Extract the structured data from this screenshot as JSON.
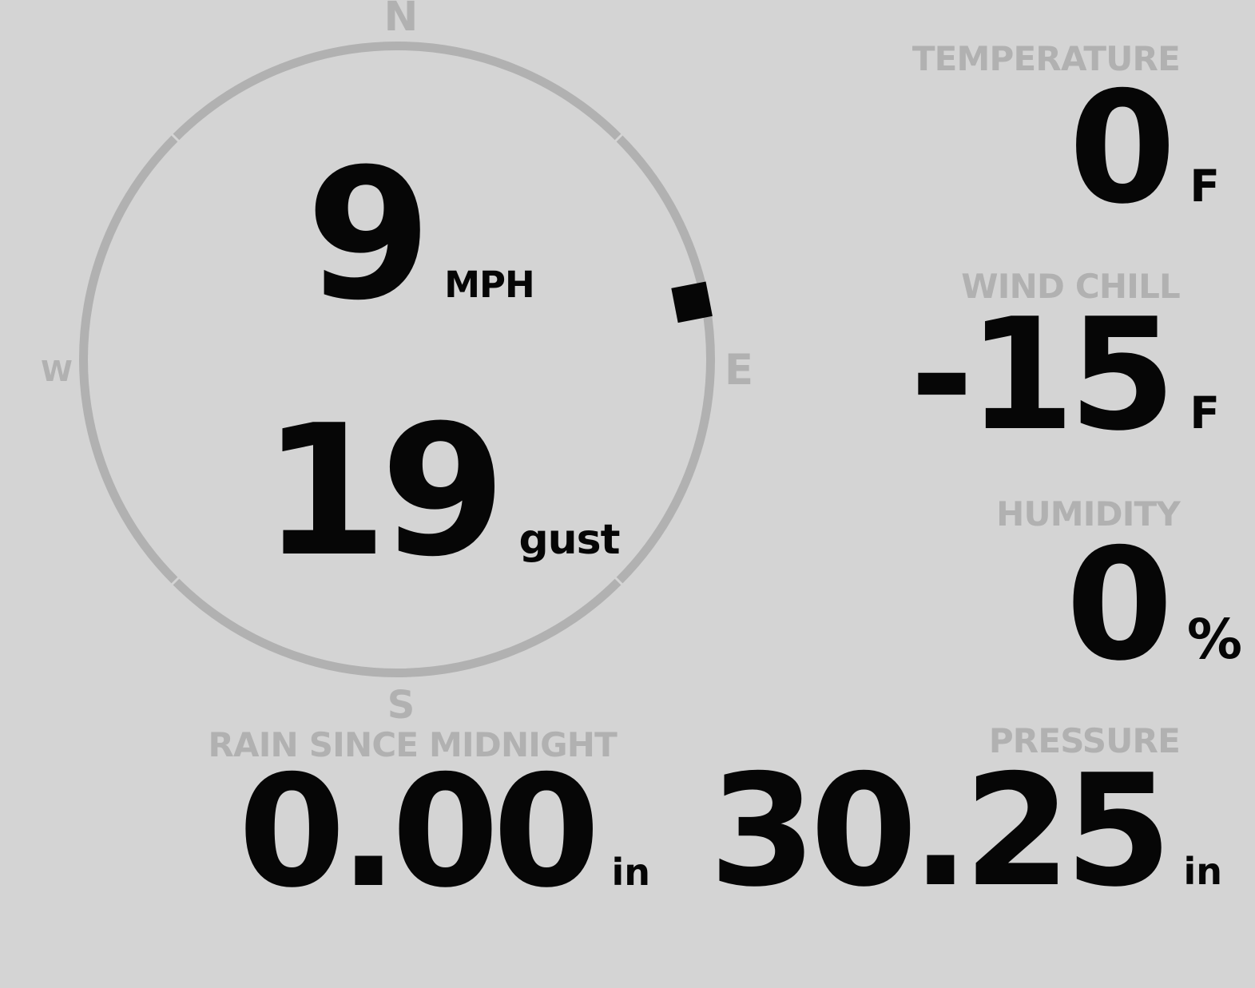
{
  "colors": {
    "background": "#d4d4d4",
    "muted": "#b1b1b1",
    "ink": "#060606"
  },
  "compass": {
    "north_label": "N",
    "east_label": "E",
    "south_label": "S",
    "west_label": "W",
    "wind_speed_value": "9",
    "wind_speed_unit": "MPH",
    "wind_gust_value": "19",
    "wind_gust_unit": "gust",
    "wind_direction_deg": 79
  },
  "metrics": {
    "temperature": {
      "label": "TEMPERATURE",
      "value": "0",
      "unit": "F"
    },
    "wind_chill": {
      "label": "WIND CHILL",
      "value": "-15",
      "unit": "F"
    },
    "humidity": {
      "label": "HUMIDITY",
      "value": "0",
      "unit": "%"
    },
    "rain_since_midnight": {
      "label": "RAIN SINCE MIDNIGHT",
      "value": "0.00",
      "unit": "in"
    },
    "pressure": {
      "label": "PRESSURE",
      "value": "30.25",
      "unit": "in"
    }
  }
}
